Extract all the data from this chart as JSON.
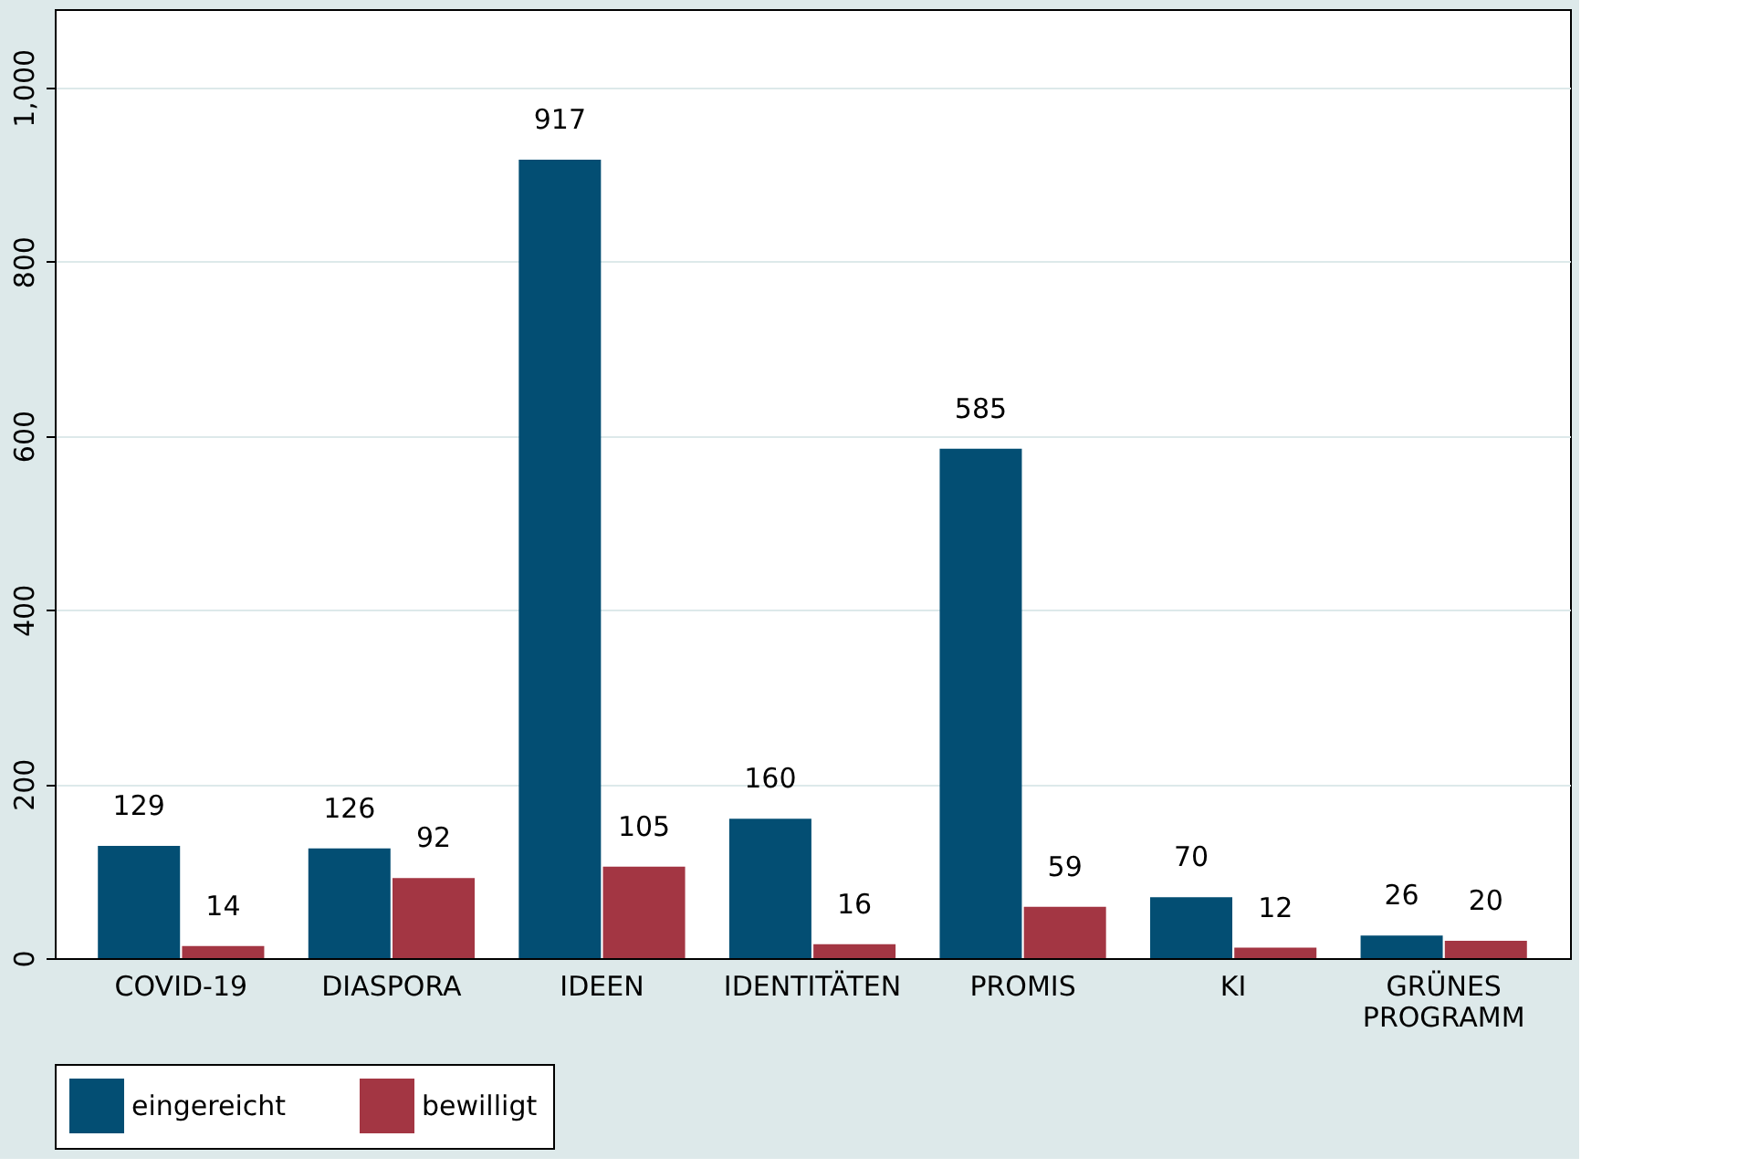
{
  "chart_data": {
    "type": "bar",
    "categories": [
      "COVID-19",
      "DIASPORA",
      "IDEEN",
      "IDENTITÄTEN",
      "PROMIS",
      "KI",
      "GRÜNES PROGRAMM"
    ],
    "series": [
      {
        "name": "eingereicht",
        "color": "#034e73",
        "values": [
          129,
          126,
          917,
          160,
          585,
          70,
          26
        ]
      },
      {
        "name": "bewilligt",
        "color": "#a33643",
        "values": [
          14,
          92,
          105,
          16,
          59,
          12,
          20
        ]
      }
    ],
    "ylim": [
      0,
      1090
    ],
    "yticks": [
      0,
      200,
      400,
      600,
      800,
      {
        "value": 1000,
        "label": "1,000"
      }
    ],
    "grid": "y",
    "legend": "bottom",
    "data_labels": true
  }
}
